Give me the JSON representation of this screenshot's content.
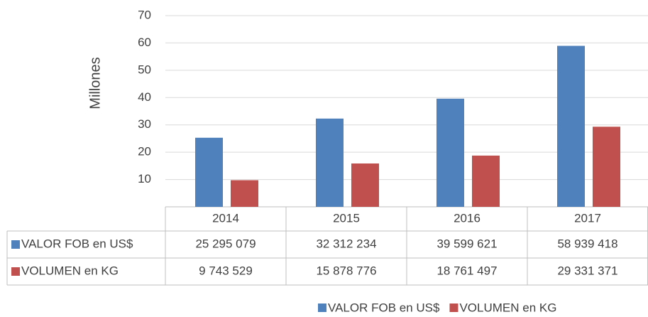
{
  "chart_data": {
    "type": "bar",
    "y_axis_label": "Millones",
    "categories": [
      "2014",
      "2015",
      "2016",
      "2017"
    ],
    "series": [
      {
        "name": "VALOR FOB en US$",
        "color": "#4f81bd",
        "values": [
          25.295079,
          32.312234,
          39.599621,
          58.939418
        ],
        "value_labels": [
          "25 295 079",
          "32 312 234",
          "39 599 621",
          "58 939 418"
        ]
      },
      {
        "name": "VOLUMEN en KG",
        "color": "#c0504d",
        "values": [
          9.743529,
          15.878776,
          18.761497,
          29.331371
        ],
        "value_labels": [
          "9 743 529",
          "15 878 776",
          "18 761 497",
          "29 331 371"
        ]
      }
    ],
    "ylim": [
      0,
      70
    ],
    "yticks": [
      10,
      20,
      30,
      40,
      50,
      60,
      70
    ],
    "grid": true,
    "legend": "bottom"
  }
}
